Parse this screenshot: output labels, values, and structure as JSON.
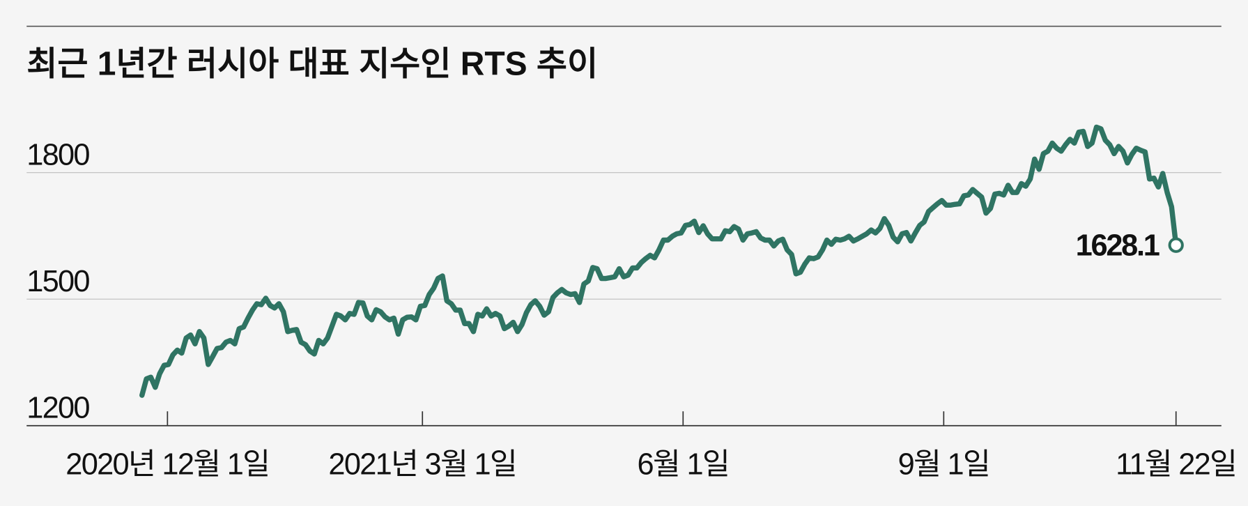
{
  "chart_data": {
    "type": "line",
    "title": "최근 1년간 러시아 대표 지수인 RTS 추이",
    "xlim": [
      "2020-11-22",
      "2021-11-22"
    ],
    "xticks": [
      {
        "value": "2020-12-01",
        "label": "2020년 12월 1일"
      },
      {
        "value": "2021-03-01",
        "label": "2021년 3월 1일"
      },
      {
        "value": "2021-06-01",
        "label": "6월 1일"
      },
      {
        "value": "2021-09-01",
        "label": "9월 1일"
      },
      {
        "value": "2021-11-22",
        "label": "11월 22일"
      }
    ],
    "ylim": [
      1200,
      2000
    ],
    "yticks": [
      1200,
      1500,
      1800
    ],
    "grid": true,
    "series": [
      {
        "color": "#2f7463",
        "values": [
          1272,
          1311,
          1315,
          1291,
          1323,
          1343,
          1345,
          1368,
          1379,
          1372,
          1408,
          1415,
          1394,
          1423,
          1408,
          1345,
          1364,
          1383,
          1385,
          1398,
          1402,
          1394,
          1430,
          1434,
          1455,
          1474,
          1489,
          1487,
          1502,
          1485,
          1479,
          1489,
          1470,
          1423,
          1426,
          1428,
          1398,
          1392,
          1377,
          1370,
          1402,
          1394,
          1408,
          1436,
          1464,
          1460,
          1451,
          1466,
          1464,
          1492,
          1491,
          1460,
          1451,
          1475,
          1470,
          1458,
          1451,
          1455,
          1417,
          1451,
          1457,
          1458,
          1451,
          1483,
          1485,
          1511,
          1526,
          1549,
          1555,
          1496,
          1489,
          1474,
          1474,
          1442,
          1442,
          1423,
          1464,
          1460,
          1477,
          1460,
          1466,
          1460,
          1430,
          1436,
          1445,
          1423,
          1440,
          1468,
          1487,
          1496,
          1483,
          1462,
          1470,
          1504,
          1515,
          1523,
          1515,
          1511,
          1513,
          1492,
          1536,
          1543,
          1575,
          1572,
          1549,
          1549,
          1551,
          1553,
          1572,
          1553,
          1557,
          1574,
          1574,
          1587,
          1596,
          1604,
          1598,
          1617,
          1640,
          1640,
          1649,
          1655,
          1657,
          1675,
          1677,
          1685,
          1658,
          1674,
          1655,
          1643,
          1643,
          1643,
          1662,
          1660,
          1672,
          1666,
          1640,
          1655,
          1657,
          1660,
          1645,
          1640,
          1640,
          1626,
          1638,
          1642,
          1617,
          1606,
          1560,
          1564,
          1583,
          1598,
          1596,
          1600,
          1617,
          1640,
          1630,
          1642,
          1640,
          1643,
          1649,
          1638,
          1643,
          1649,
          1655,
          1664,
          1657,
          1668,
          1691,
          1675,
          1647,
          1636,
          1655,
          1658,
          1638,
          1657,
          1675,
          1683,
          1708,
          1717,
          1726,
          1734,
          1723,
          1723,
          1725,
          1726,
          1745,
          1747,
          1760,
          1751,
          1742,
          1704,
          1715,
          1749,
          1751,
          1747,
          1770,
          1753,
          1753,
          1774,
          1768,
          1785,
          1832,
          1808,
          1845,
          1851,
          1870,
          1858,
          1851,
          1866,
          1879,
          1870,
          1896,
          1898,
          1862,
          1870,
          1908,
          1904,
          1877,
          1866,
          1845,
          1862,
          1851,
          1823,
          1843,
          1858,
          1853,
          1849,
          1785,
          1787,
          1766,
          1798,
          1753,
          1719,
          1628.1
        ]
      }
    ]
  }
}
